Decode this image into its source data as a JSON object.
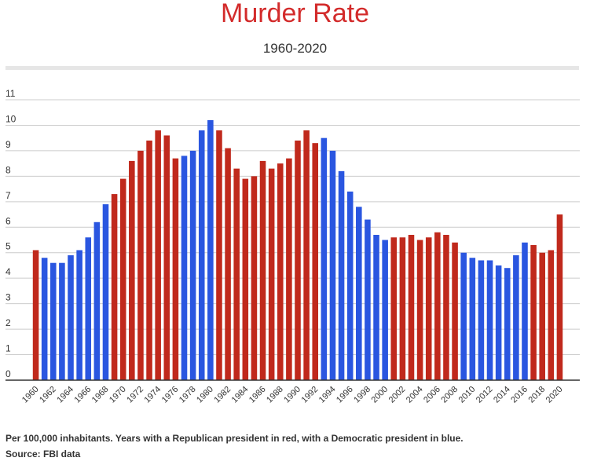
{
  "title": "Murder Rate",
  "subtitle": "1960-2020",
  "footnote": "Per 100,000 inhabitants. Years with a Republican president in red, with a Democratic president in blue.",
  "source": "Source: FBI data",
  "colors": {
    "republican": "#c0291c",
    "democratic": "#2a56e0",
    "grid": "#cccccc",
    "axis": "#333333",
    "title": "#d32b2b"
  },
  "chart_data": {
    "type": "bar",
    "title": "Murder Rate",
    "subtitle": "1960-2020",
    "xlabel": "",
    "ylabel": "",
    "ylim": [
      0,
      11
    ],
    "y_ticks": [
      0,
      1,
      2,
      3,
      4,
      5,
      6,
      7,
      8,
      9,
      10,
      11
    ],
    "grid": true,
    "legend": "none",
    "categories": [
      "1960",
      "1961",
      "1962",
      "1963",
      "1964",
      "1965",
      "1966",
      "1967",
      "1968",
      "1969",
      "1970",
      "1971",
      "1972",
      "1973",
      "1974",
      "1975",
      "1976",
      "1977",
      "1978",
      "1979",
      "1980",
      "1981",
      "1982",
      "1983",
      "1984",
      "1985",
      "1986",
      "1987",
      "1988",
      "1989",
      "1990",
      "1991",
      "1992",
      "1993",
      "1994",
      "1995",
      "1996",
      "1997",
      "1998",
      "1999",
      "2000",
      "2001",
      "2002",
      "2003",
      "2004",
      "2005",
      "2006",
      "2007",
      "2008",
      "2009",
      "2010",
      "2011",
      "2012",
      "2013",
      "2014",
      "2015",
      "2016",
      "2017",
      "2018",
      "2019",
      "2020"
    ],
    "x_tick_labels": [
      "1960",
      "1962",
      "1964",
      "1966",
      "1968",
      "1970",
      "1972",
      "1974",
      "1976",
      "1978",
      "1980",
      "1982",
      "1984",
      "1986",
      "1988",
      "1990",
      "1992",
      "1994",
      "1996",
      "1998",
      "2000",
      "2002",
      "2004",
      "2006",
      "2008",
      "2010",
      "2012",
      "2014",
      "2016",
      "2018",
      "2020"
    ],
    "values": [
      5.1,
      4.8,
      4.6,
      4.6,
      4.9,
      5.1,
      5.6,
      6.2,
      6.9,
      7.3,
      7.9,
      8.6,
      9.0,
      9.4,
      9.8,
      9.6,
      8.7,
      8.8,
      9.0,
      9.8,
      10.2,
      9.8,
      9.1,
      8.3,
      7.9,
      8.0,
      8.6,
      8.3,
      8.5,
      8.7,
      9.4,
      9.8,
      9.3,
      9.5,
      9.0,
      8.2,
      7.4,
      6.8,
      6.3,
      5.7,
      5.5,
      5.6,
      5.6,
      5.7,
      5.5,
      5.6,
      5.8,
      5.7,
      5.4,
      5.0,
      4.8,
      4.7,
      4.7,
      4.5,
      4.4,
      4.9,
      5.4,
      5.3,
      5.0,
      5.1,
      6.5
    ],
    "party": [
      "R",
      "D",
      "D",
      "D",
      "D",
      "D",
      "D",
      "D",
      "D",
      "R",
      "R",
      "R",
      "R",
      "R",
      "R",
      "R",
      "R",
      "D",
      "D",
      "D",
      "D",
      "R",
      "R",
      "R",
      "R",
      "R",
      "R",
      "R",
      "R",
      "R",
      "R",
      "R",
      "R",
      "D",
      "D",
      "D",
      "D",
      "D",
      "D",
      "D",
      "D",
      "R",
      "R",
      "R",
      "R",
      "R",
      "R",
      "R",
      "R",
      "D",
      "D",
      "D",
      "D",
      "D",
      "D",
      "D",
      "D",
      "R",
      "R",
      "R",
      "R"
    ]
  }
}
